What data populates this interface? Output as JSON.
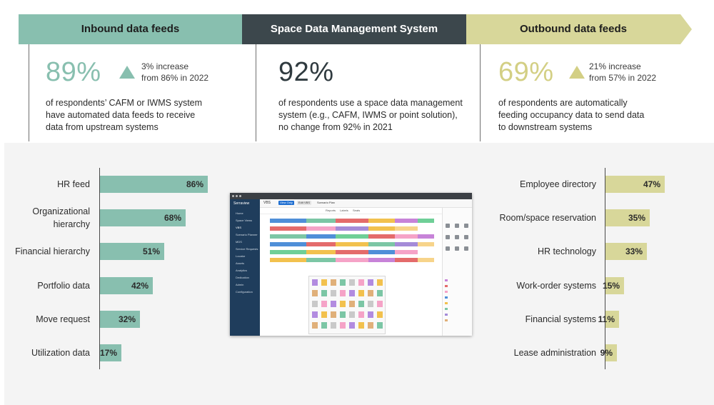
{
  "banners": {
    "inbound": "Inbound data feeds",
    "sdms": "Space Data Management System",
    "outbound": "Outbound data feeds"
  },
  "stats": {
    "inbound": {
      "value": "89%",
      "increase_line1": "3% increase",
      "increase_line2": "from 86% in 2022",
      "desc_line1": "of respondents’ CAFM or IWMS system",
      "desc_line2": "have automated data feeds to receive",
      "desc_line3": "data from upstream systems"
    },
    "sdms": {
      "value": "92%",
      "desc_line1": "of respondents use a space data management",
      "desc_line2": "system (e.g., CAFM, IWMS or point solution),",
      "desc_line3": "no change from 92% in 2021"
    },
    "outbound": {
      "value": "69%",
      "increase_line1": "21% increase",
      "increase_line2": "from 57% in 2022",
      "desc_line1": "of respondents are automatically",
      "desc_line2": "feeding occupancy data to send data",
      "desc_line3": "to downstream systems"
    }
  },
  "colors": {
    "teal": "#88bfaf",
    "dark": "#3c474c",
    "yellow": "#d8d79a"
  },
  "chart_data": [
    {
      "type": "bar",
      "orientation": "horizontal",
      "categories": [
        [
          "HR feed"
        ],
        [
          "Organizational",
          "hierarchy"
        ],
        [
          "Financial hierarchy"
        ],
        [
          "Portfolio data"
        ],
        [
          "Move request"
        ],
        [
          "Utilization data"
        ]
      ],
      "values": [
        86,
        68,
        51,
        42,
        32,
        17
      ],
      "value_labels": [
        "86%",
        "68%",
        "51%",
        "42%",
        "32%",
        "17%"
      ],
      "xlim": [
        0,
        100
      ],
      "color": "#88bfaf"
    },
    {
      "type": "bar",
      "orientation": "horizontal",
      "categories": [
        [
          "Employee directory"
        ],
        [
          "Room/space reservation"
        ],
        [
          "HR technology"
        ],
        [
          "Work-order systems"
        ],
        [
          "Financial systems"
        ],
        [
          "Lease administration"
        ]
      ],
      "values": [
        47,
        35,
        33,
        15,
        11,
        9
      ],
      "value_labels": [
        "47%",
        "35%",
        "33%",
        "15%",
        "11%",
        "9%"
      ],
      "xlim": [
        0,
        100
      ],
      "color": "#d8d79a"
    }
  ],
  "screenshot": {
    "brand": "Serraview",
    "nav": [
      "Home",
      "Space Views",
      "VBS",
      "Scenario Planner",
      "MDS",
      "Service Requests",
      "Locator",
      "Assets",
      "Analytics",
      "Dedication",
      "Admin",
      "Configuration"
    ],
    "title": "VBS",
    "view_only": "View Only",
    "edit_vbs": "Edit VBS",
    "scenario": "Scenario Plan",
    "tools": [
      "Reports",
      "Labels",
      "Seats"
    ]
  }
}
